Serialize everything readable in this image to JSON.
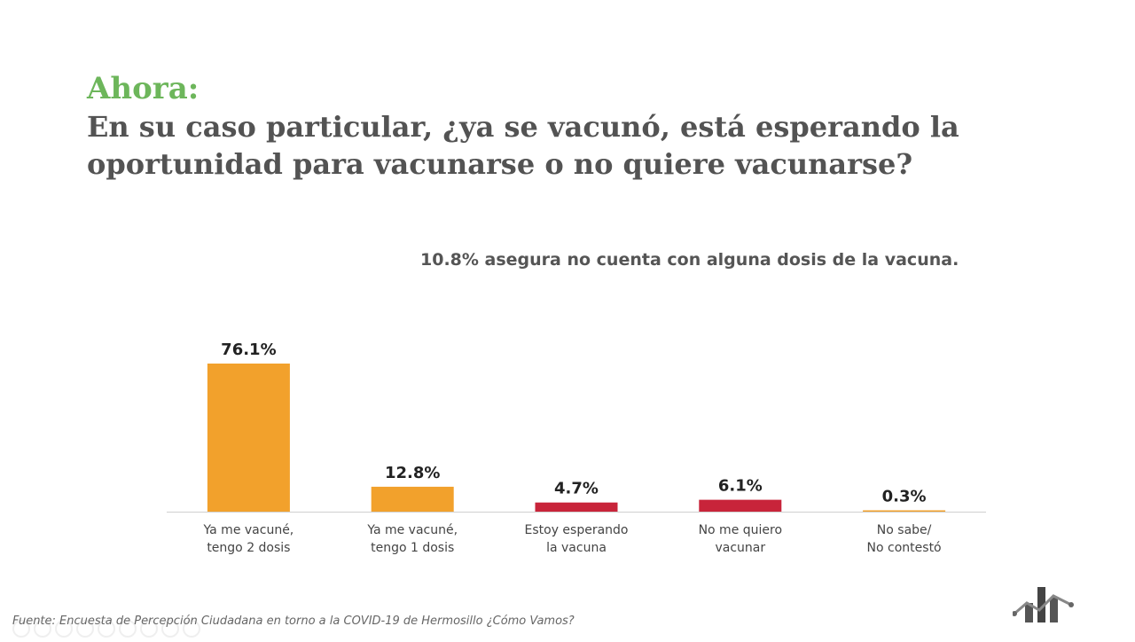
{
  "header": {
    "kicker": "Ahora:",
    "question": "En su caso particular, ¿ya se vacunó, está esperando la oportunidad para vacunarse o no quiere vacunarse?"
  },
  "subtitle": "10.8% asegura no cuenta con alguna dosis de la vacuna.",
  "source": "Fuente: Encuesta de Percepción Ciudadana en torno a la COVID-19 de Hermosillo ¿Cómo Vamos?",
  "chart_data": {
    "type": "bar",
    "categories": [
      [
        "Ya me vacuné,",
        "tengo 2 dosis"
      ],
      [
        "Ya me vacuné,",
        "tengo 1 dosis"
      ],
      [
        "Estoy esperando",
        "la vacuna"
      ],
      [
        "No me quiero",
        "vacunar"
      ],
      [
        "No sabe/",
        "No contestó"
      ]
    ],
    "values": [
      76.1,
      12.8,
      4.7,
      6.1,
      0.3
    ],
    "data_labels": [
      "76.1%",
      "12.8%",
      "4.7%",
      "6.1%",
      "0.3%"
    ],
    "colors": [
      "#f2a12c",
      "#f2a12c",
      "#c8243a",
      "#c8243a",
      "#f2a12c"
    ],
    "ylim": [
      0,
      76.1
    ],
    "grid": false,
    "legend": "none"
  },
  "logo": {
    "icon": "hermosillo-como-vamos-logo-icon",
    "colors": [
      "#4a4a4a",
      "#888888"
    ]
  }
}
